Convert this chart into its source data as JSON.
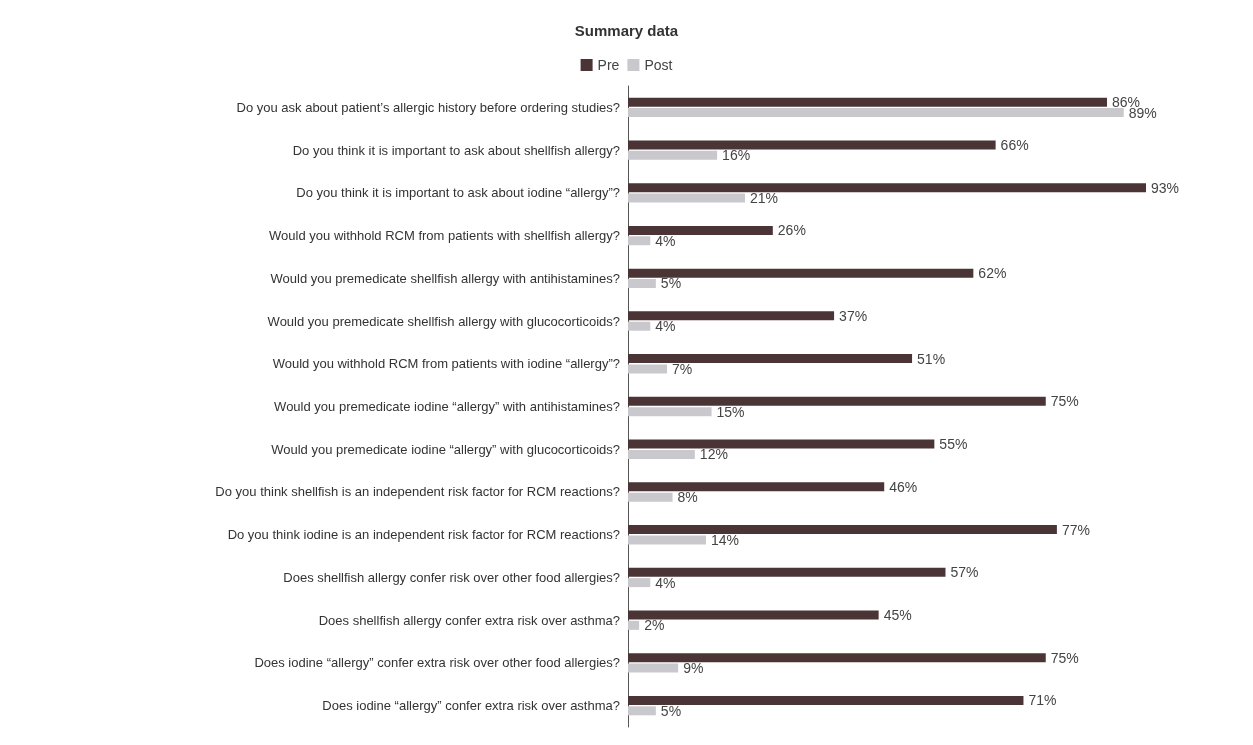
{
  "chart_data": {
    "type": "bar",
    "orientation": "horizontal",
    "title": "Summary data",
    "legend": "top",
    "tick_labels": "y",
    "categories": [
      "Do you ask about patient’s allergic history before ordering studies?",
      "Do you think it is important to ask about shellfish allergy?",
      "Do you think it is important to ask about iodine “allergy”?",
      "Would you withhold RCM from patients with shellfish allergy?",
      "Would you premedicate shellfish allergy with antihistamines?",
      "Would you premedicate shellfish allergy with glucocorticoids?",
      "Would you withhold RCM from patients with iodine “allergy”?",
      "Would you premedicate iodine “allergy” with antihistamines?",
      "Would you premedicate iodine “allergy” with glucocorticoids?",
      "Do you think shellfish is an independent risk factor for RCM reactions?",
      "Do you think iodine is an independent risk factor for RCM reactions?",
      "Does shellfish allergy confer risk over other food allergies?",
      "Does shellfish allergy confer extra risk over asthma?",
      "Does iodine “allergy” confer extra risk over other food allergies?",
      "Does iodine “allergy” confer extra risk over asthma?"
    ],
    "series": [
      {
        "name": "Pre",
        "color": "#4b3436",
        "values": [
          86,
          66,
          93,
          26,
          62,
          37,
          51,
          75,
          55,
          46,
          77,
          57,
          45,
          75,
          71
        ],
        "value_labels": [
          "86%",
          "66%",
          "93%",
          "26%",
          "62%",
          "37%",
          "51%",
          "75%",
          "55%",
          "46%",
          "77%",
          "57%",
          "45%",
          "75%",
          "71%"
        ]
      },
      {
        "name": "Post",
        "color": "#c9c9cd",
        "values": [
          89,
          16,
          21,
          4,
          5,
          4,
          7,
          15,
          12,
          8,
          14,
          4,
          2,
          9,
          5
        ],
        "value_labels": [
          "89%",
          "16%",
          "21%",
          "4%",
          "5%",
          "4%",
          "7%",
          "15%",
          "12%",
          "8%",
          "14%",
          "4%",
          "2%",
          "9%",
          "5%"
        ]
      }
    ]
  }
}
